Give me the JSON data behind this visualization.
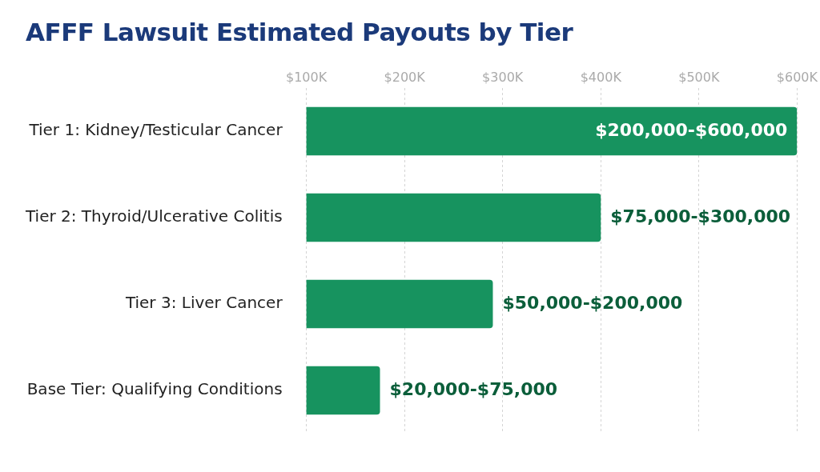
{
  "chart_data": {
    "type": "bar",
    "orientation": "horizontal",
    "title": "AFFF Lawsuit Estimated Payouts by Tier",
    "categories": [
      "Tier 1: Kidney/Testicular Cancer",
      "Tier 2: Thyroid/Ulcerative Colitis",
      "Tier 3: Liver Cancer",
      "Base Tier: Qualifying Conditions"
    ],
    "values": [
      600000,
      400000,
      290000,
      175000
    ],
    "value_labels": [
      "$200,000-$600,000",
      "$75,000-$300,000",
      "$50,000-$200,000",
      "$20,000-$75,000"
    ],
    "color": "#17935f",
    "xlim": [
      100000,
      600000
    ],
    "xticks": [
      {
        "value": 100000,
        "label": "$100K"
      },
      {
        "value": 200000,
        "label": "$200K"
      },
      {
        "value": 300000,
        "label": "$300K"
      },
      {
        "value": 400000,
        "label": "$400K"
      },
      {
        "value": 500000,
        "label": "$500K"
      },
      {
        "value": 600000,
        "label": "$600K"
      }
    ],
    "grid": "x",
    "legend": false
  }
}
